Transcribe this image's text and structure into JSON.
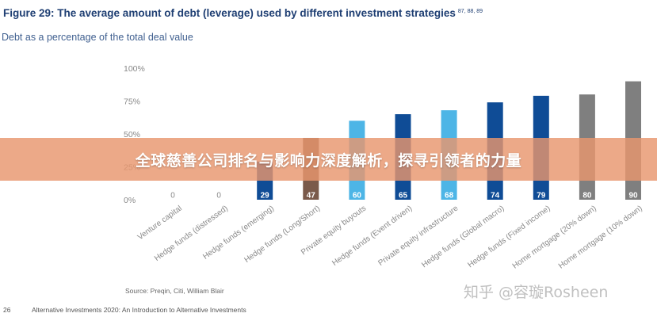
{
  "figure": {
    "title": "Figure 29: The average amount of debt (leverage) used by different investment strategies",
    "refs": "87, 88, 89",
    "subtitle": "Debt as a percentage of the total deal value"
  },
  "chart_data": {
    "type": "bar",
    "title": "Figure 29: The average amount of debt (leverage) used by different investment strategies",
    "ylabel": "Debt as a percentage of the total deal value",
    "xlabel": "",
    "ylim": [
      0,
      100
    ],
    "yticks": [
      "0%",
      "25%",
      "50%",
      "75%",
      "100%"
    ],
    "ytick_values": [
      0,
      25,
      50,
      75,
      100
    ],
    "categories": [
      "Venture capital",
      "Hedge funds (distressed)",
      "Hedge funds (emerging)",
      "Hedge funds (Long/Short)",
      "Private equity buyouts",
      "Hedge funds (Event driven)",
      "Private equity infrastructure",
      "Hedge funds (Global macro)",
      "Hedge funds (Fixed income)",
      "Home mortgage (20% down)",
      "Home mortgage (10% down)"
    ],
    "values": [
      0,
      0,
      29,
      47,
      60,
      65,
      68,
      74,
      79,
      80,
      90
    ],
    "labels": [
      "0",
      "0",
      "29",
      "47",
      "60",
      "65",
      "68",
      "74",
      "79",
      "80",
      "90"
    ],
    "bar_colors": [
      "#8c8c8c",
      "#8c8c8c",
      "#0f4c96",
      "#7a5a4a",
      "#4db5e6",
      "#0f4c96",
      "#4db5e6",
      "#0f4c96",
      "#0f4c96",
      "#7f7f7f",
      "#7f7f7f"
    ]
  },
  "banner": {
    "text": "全球慈善公司排名与影响力深度解析，探寻引领者的力量"
  },
  "source": "Source: Preqin, Citi, William Blair",
  "watermark": "知乎 @容璇Rosheen",
  "footer": {
    "page": "26",
    "doc_title": "Alternative Investments 2020: An Introduction to Alternative Investments"
  }
}
